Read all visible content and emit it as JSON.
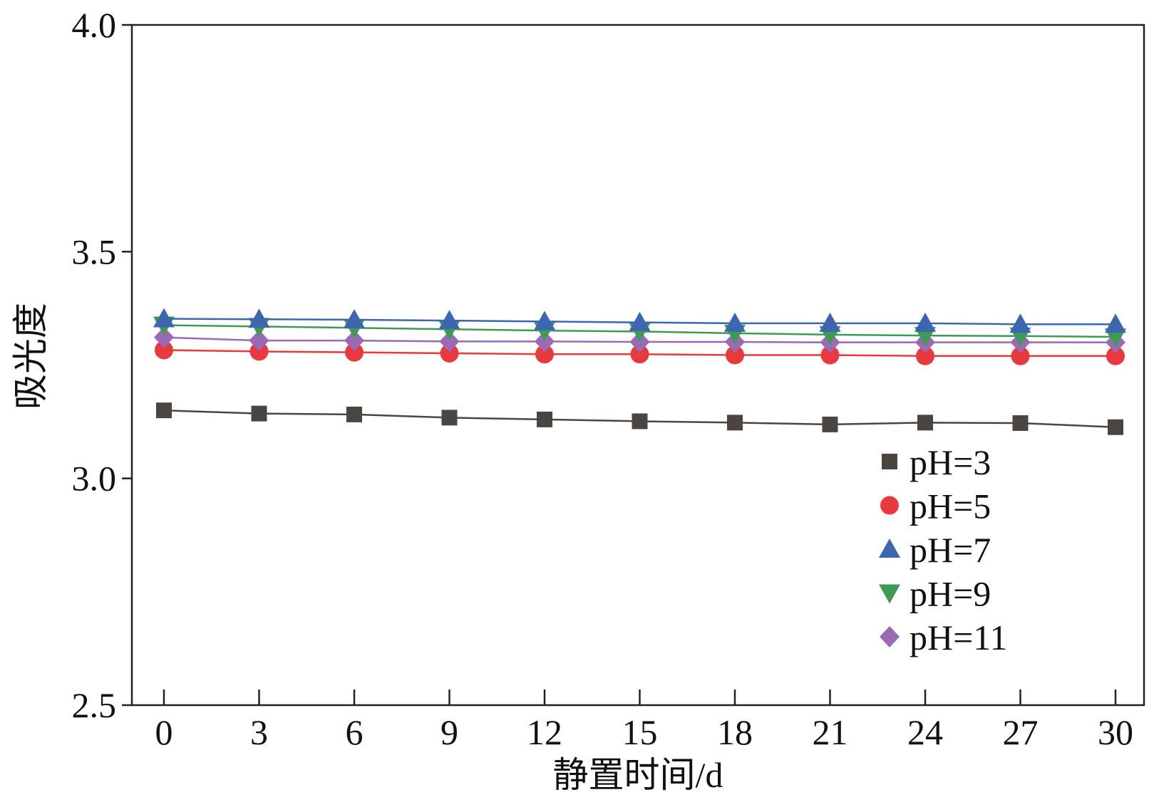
{
  "chart_data": {
    "type": "line",
    "xlabel": "静置时间/d",
    "ylabel": "吸光度",
    "x": [
      0,
      3,
      6,
      9,
      12,
      15,
      18,
      21,
      24,
      27,
      30
    ],
    "x_ticks": [
      "0",
      "3",
      "6",
      "9",
      "12",
      "15",
      "18",
      "21",
      "24",
      "27",
      "30"
    ],
    "y_ticks": [
      "2.5",
      "3.0",
      "3.5",
      "4.0"
    ],
    "ylim": [
      2.5,
      4.0
    ],
    "grid": false,
    "legend_position": "bottom-right",
    "series": [
      {
        "name": "pH=3",
        "marker": "square",
        "color": "#4a4541",
        "values": [
          3.15,
          3.143,
          3.141,
          3.134,
          3.13,
          3.126,
          3.123,
          3.119,
          3.123,
          3.122,
          3.113
        ]
      },
      {
        "name": "pH=5",
        "marker": "circle",
        "color": "#e8393f",
        "values": [
          3.283,
          3.28,
          3.278,
          3.276,
          3.274,
          3.274,
          3.272,
          3.272,
          3.27,
          3.27,
          3.27
        ]
      },
      {
        "name": "pH=7",
        "marker": "triangle-up",
        "color": "#3c67b0",
        "values": [
          3.352,
          3.351,
          3.35,
          3.348,
          3.346,
          3.344,
          3.342,
          3.342,
          3.342,
          3.34,
          3.34
        ]
      },
      {
        "name": "pH=9",
        "marker": "triangle-down",
        "color": "#3f9a55",
        "values": [
          3.338,
          3.335,
          3.332,
          3.329,
          3.326,
          3.324,
          3.32,
          3.317,
          3.315,
          3.314,
          3.312
        ]
      },
      {
        "name": "pH=11",
        "marker": "diamond",
        "color": "#9a6ab5",
        "values": [
          3.311,
          3.304,
          3.304,
          3.302,
          3.302,
          3.301,
          3.301,
          3.3,
          3.3,
          3.3,
          3.3
        ]
      }
    ]
  }
}
